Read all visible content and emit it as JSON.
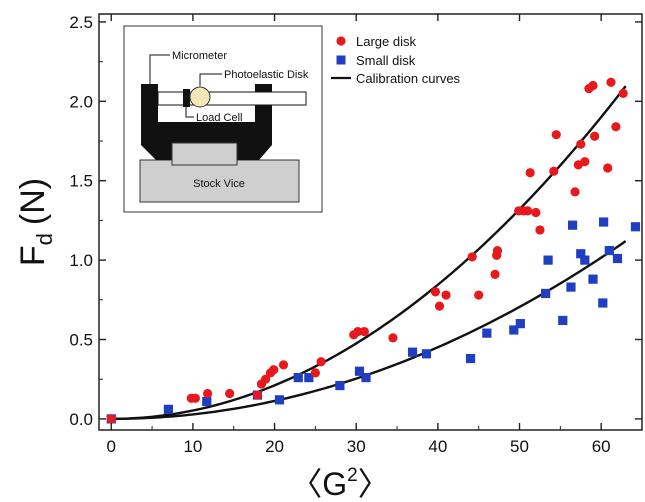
{
  "chart_data": {
    "type": "scatter",
    "xlabel": "〈G²〉",
    "ylabel": "Fd (N)",
    "ylabel_main": "F",
    "ylabel_sub": "d",
    "ylabel_unit": "(N)",
    "xlabel_left": "〈",
    "xlabel_base": "G",
    "xlabel_sup": "2",
    "xlabel_right": "〉",
    "xlim": [
      -1.5,
      65
    ],
    "ylim": [
      -0.07,
      2.55
    ],
    "xticks": [
      0,
      10,
      20,
      30,
      40,
      50,
      60
    ],
    "yticks": [
      "0.0",
      "0.5",
      "1.0",
      "1.5",
      "2.0",
      "2.5"
    ],
    "grid": false,
    "legend_position": "top-center",
    "series": [
      {
        "name": "Large disk",
        "marker": "circle",
        "color": "#e8191c",
        "points": [
          [
            0,
            0.0
          ],
          [
            9.8,
            0.13
          ],
          [
            10.3,
            0.13
          ],
          [
            11.8,
            0.16
          ],
          [
            14.5,
            0.16
          ],
          [
            17.9,
            0.15
          ],
          [
            18.4,
            0.22
          ],
          [
            18.9,
            0.25
          ],
          [
            19.5,
            0.29
          ],
          [
            19.9,
            0.31
          ],
          [
            21.1,
            0.34
          ],
          [
            25.0,
            0.29
          ],
          [
            25.7,
            0.36
          ],
          [
            29.7,
            0.53
          ],
          [
            30.2,
            0.55
          ],
          [
            31.0,
            0.55
          ],
          [
            34.5,
            0.51
          ],
          [
            39.7,
            0.8
          ],
          [
            40.2,
            0.71
          ],
          [
            41.0,
            0.78
          ],
          [
            44.2,
            1.02
          ],
          [
            45.0,
            0.78
          ],
          [
            47.0,
            0.91
          ],
          [
            47.2,
            1.03
          ],
          [
            47.3,
            1.06
          ],
          [
            49.9,
            1.31
          ],
          [
            50.5,
            1.31
          ],
          [
            51.0,
            1.31
          ],
          [
            51.3,
            1.55
          ],
          [
            52.0,
            1.3
          ],
          [
            52.5,
            1.19
          ],
          [
            54.2,
            1.56
          ],
          [
            54.5,
            1.79
          ],
          [
            56.8,
            1.43
          ],
          [
            57.2,
            1.6
          ],
          [
            57.5,
            1.73
          ],
          [
            58.0,
            1.62
          ],
          [
            58.5,
            2.08
          ],
          [
            59.0,
            2.1
          ],
          [
            59.2,
            1.78
          ],
          [
            60.8,
            1.58
          ],
          [
            61.2,
            2.12
          ],
          [
            61.8,
            1.84
          ],
          [
            62.7,
            2.05
          ]
        ]
      },
      {
        "name": "Small disk",
        "marker": "square",
        "color": "#1f3fc0",
        "points": [
          [
            0,
            0.0
          ],
          [
            7.0,
            0.06
          ],
          [
            11.7,
            0.11
          ],
          [
            17.9,
            0.15
          ],
          [
            20.6,
            0.12
          ],
          [
            22.9,
            0.26
          ],
          [
            24.2,
            0.26
          ],
          [
            28.0,
            0.21
          ],
          [
            30.4,
            0.3
          ],
          [
            31.2,
            0.26
          ],
          [
            36.9,
            0.42
          ],
          [
            38.6,
            0.41
          ],
          [
            44.0,
            0.38
          ],
          [
            46.0,
            0.54
          ],
          [
            49.3,
            0.56
          ],
          [
            50.1,
            0.6
          ],
          [
            53.2,
            0.79
          ],
          [
            53.5,
            1.0
          ],
          [
            55.3,
            0.62
          ],
          [
            56.3,
            0.83
          ],
          [
            56.5,
            1.22
          ],
          [
            57.5,
            1.04
          ],
          [
            58.0,
            1.0
          ],
          [
            59.0,
            0.88
          ],
          [
            60.2,
            0.73
          ],
          [
            60.3,
            1.24
          ],
          [
            61.0,
            1.06
          ],
          [
            62.0,
            1.01
          ],
          [
            64.2,
            1.21
          ]
        ]
      },
      {
        "name": "Calibration curves",
        "marker": "line",
        "color": "#111111",
        "curves": [
          {
            "for": "Large disk",
            "coefficient": 0.000528,
            "exponent": 2,
            "x_range": [
              0,
              63
            ]
          },
          {
            "for": "Small disk",
            "coefficient": 0.000282,
            "exponent": 2,
            "x_range": [
              0,
              63
            ]
          }
        ]
      }
    ],
    "inset": {
      "labels": {
        "micrometer": "Micrometer",
        "photoelastic_disk": "Photoelastic Disk",
        "load_cell": "Load Cell",
        "stock_vice": "Stock Vice"
      }
    }
  }
}
